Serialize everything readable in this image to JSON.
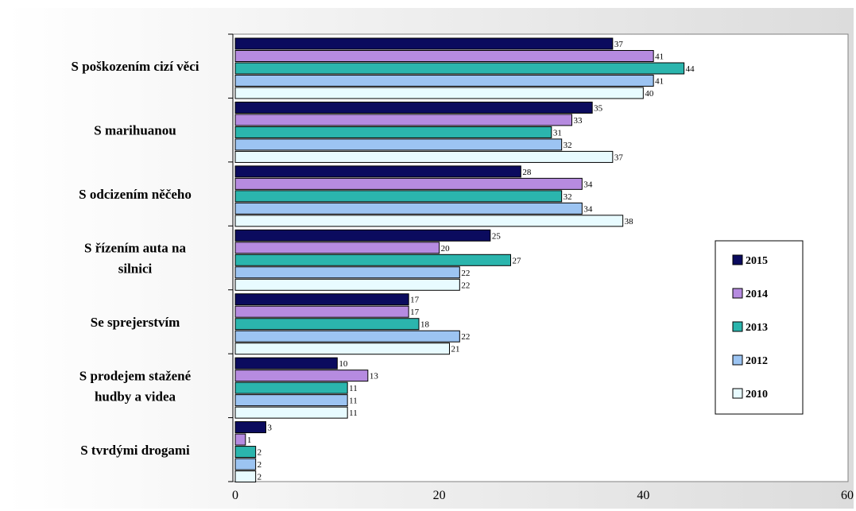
{
  "chart_data": {
    "type": "bar",
    "orientation": "horizontal",
    "categories": [
      [
        "S poškozením cizí věci"
      ],
      [
        "S marihuanou"
      ],
      [
        "S odcizením něčeho"
      ],
      [
        "S řízením auta na",
        "silnici"
      ],
      [
        "Se sprejerstvím"
      ],
      [
        "S prodejem stažené",
        "hudby a videa"
      ],
      [
        "S tvrdými drogami"
      ]
    ],
    "series": [
      {
        "name": "2015",
        "color": "#0b0b5e",
        "values": [
          37,
          35,
          28,
          25,
          17,
          10,
          3
        ]
      },
      {
        "name": "2014",
        "color": "#b68be0",
        "values": [
          41,
          33,
          34,
          20,
          17,
          13,
          1
        ]
      },
      {
        "name": "2013",
        "color": "#2bb5ad",
        "values": [
          44,
          31,
          32,
          27,
          18,
          11,
          2
        ]
      },
      {
        "name": "2012",
        "color": "#9cc4f2",
        "values": [
          41,
          32,
          34,
          22,
          22,
          11,
          2
        ]
      },
      {
        "name": "2010",
        "color": "#e8fbff",
        "values": [
          40,
          37,
          38,
          22,
          21,
          11,
          2
        ]
      }
    ],
    "xlim": [
      0,
      60
    ],
    "xticks": [
      "0",
      "20",
      "40",
      "60"
    ],
    "legend": {
      "position": "right",
      "order": [
        "2015",
        "2014",
        "2013",
        "2012",
        "2010"
      ]
    },
    "background": "#e4e4e4"
  }
}
